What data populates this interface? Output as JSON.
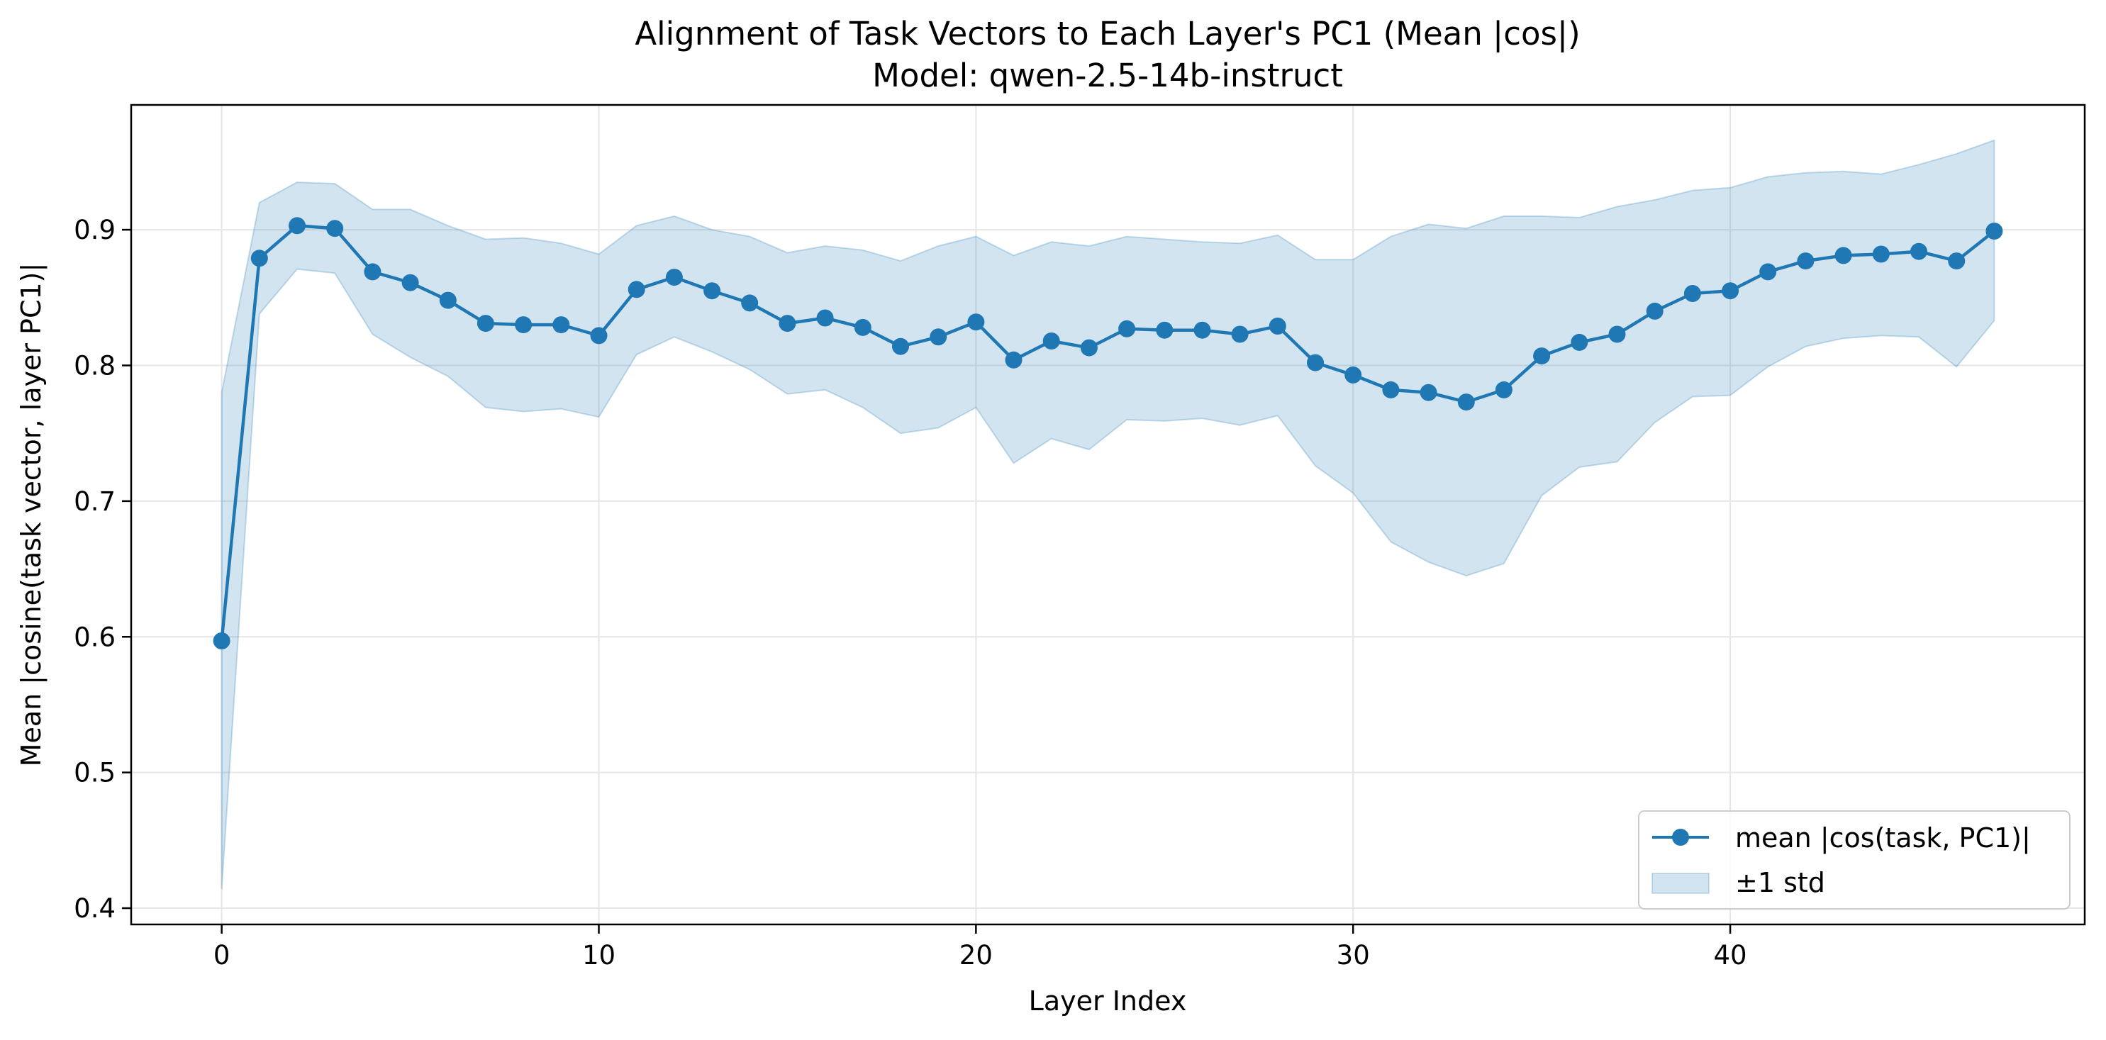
{
  "chart_data": {
    "type": "line",
    "title": "Alignment of Task Vectors to Each Layer's PC1 (Mean |cos|)",
    "subtitle": "Model: qwen-2.5-14b-instruct",
    "xlabel": "Layer Index",
    "ylabel": "Mean |cosine(task vector, layer PC1)|",
    "xlim": [
      -2.4,
      49.4
    ],
    "ylim": [
      0.388,
      0.992
    ],
    "x_ticks": [
      0,
      10,
      20,
      30,
      40
    ],
    "x_tick_labels": [
      "0",
      "10",
      "20",
      "30",
      "40"
    ],
    "y_ticks": [
      0.4,
      0.5,
      0.6,
      0.7,
      0.8,
      0.9
    ],
    "y_tick_labels": [
      "0.4",
      "0.5",
      "0.6",
      "0.7",
      "0.8",
      "0.9"
    ],
    "grid": true,
    "legend_position": "lower-right",
    "colors": {
      "line": "#1f77b4",
      "band": "#1f77b4",
      "grid": "#e6e6e6"
    },
    "x": [
      0,
      1,
      2,
      3,
      4,
      5,
      6,
      7,
      8,
      9,
      10,
      11,
      12,
      13,
      14,
      15,
      16,
      17,
      18,
      19,
      20,
      21,
      22,
      23,
      24,
      25,
      26,
      27,
      28,
      29,
      30,
      31,
      32,
      33,
      34,
      35,
      36,
      37,
      38,
      39,
      40,
      41,
      42,
      43,
      44,
      45,
      46,
      47
    ],
    "series": [
      {
        "name": "mean |cos(task, PC1)|",
        "kind": "line-marker",
        "values": [
          0.597,
          0.879,
          0.903,
          0.901,
          0.869,
          0.861,
          0.848,
          0.831,
          0.83,
          0.83,
          0.822,
          0.856,
          0.865,
          0.855,
          0.846,
          0.831,
          0.835,
          0.828,
          0.814,
          0.821,
          0.832,
          0.804,
          0.818,
          0.813,
          0.827,
          0.826,
          0.826,
          0.823,
          0.829,
          0.802,
          0.793,
          0.782,
          0.78,
          0.773,
          0.782,
          0.807,
          0.817,
          0.823,
          0.84,
          0.853,
          0.855,
          0.869,
          0.877,
          0.881,
          0.882,
          0.884,
          0.877,
          0.899
        ]
      },
      {
        "name": "±1 std",
        "kind": "band",
        "lower": [
          0.414,
          0.838,
          0.871,
          0.868,
          0.823,
          0.806,
          0.792,
          0.769,
          0.766,
          0.768,
          0.762,
          0.808,
          0.821,
          0.81,
          0.797,
          0.779,
          0.782,
          0.769,
          0.75,
          0.754,
          0.769,
          0.728,
          0.746,
          0.738,
          0.76,
          0.759,
          0.761,
          0.756,
          0.763,
          0.726,
          0.706,
          0.67,
          0.655,
          0.645,
          0.654,
          0.704,
          0.725,
          0.729,
          0.758,
          0.777,
          0.778,
          0.799,
          0.814,
          0.82,
          0.822,
          0.821,
          0.799,
          0.833
        ],
        "upper": [
          0.78,
          0.92,
          0.935,
          0.934,
          0.915,
          0.915,
          0.903,
          0.893,
          0.894,
          0.89,
          0.882,
          0.903,
          0.91,
          0.9,
          0.895,
          0.883,
          0.888,
          0.885,
          0.877,
          0.888,
          0.895,
          0.881,
          0.891,
          0.888,
          0.895,
          0.893,
          0.891,
          0.89,
          0.896,
          0.878,
          0.878,
          0.895,
          0.904,
          0.901,
          0.91,
          0.91,
          0.909,
          0.917,
          0.922,
          0.929,
          0.931,
          0.939,
          0.942,
          0.943,
          0.941,
          0.948,
          0.956,
          0.966
        ]
      }
    ]
  }
}
